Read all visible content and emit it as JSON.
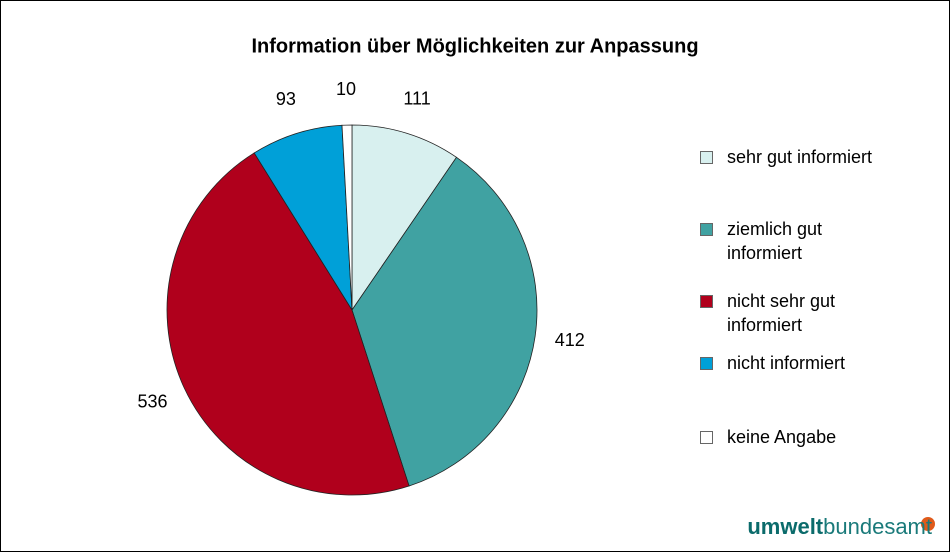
{
  "chart_data": {
    "type": "pie",
    "title": "Information über Möglichkeiten zur Anpassung",
    "categories": [
      "sehr gut informiert",
      "ziemlich gut informiert",
      "nicht sehr gut informiert",
      "nicht informiert",
      "keine Angabe"
    ],
    "values": [
      111,
      412,
      536,
      93,
      10
    ],
    "colors": [
      "#d8f0ef",
      "#40a2a2",
      "#b0001c",
      "#00a0d8",
      "#ffffff"
    ]
  },
  "logo": {
    "bold": "umwelt",
    "rest": "bundesamt"
  }
}
